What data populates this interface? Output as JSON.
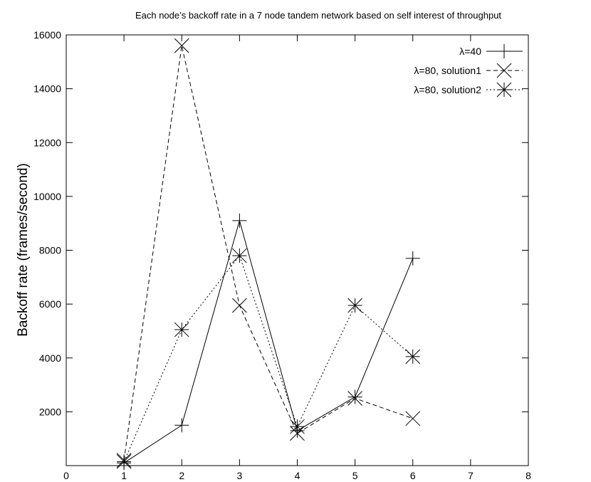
{
  "chart_data": {
    "type": "line",
    "title": "Each node’s backoff rate in a 7 node tandem network based on self interest of throughput",
    "xlabel": "",
    "ylabel": "Backoff rate (frames/second)",
    "xlim": [
      0,
      8
    ],
    "ylim": [
      0,
      16000
    ],
    "x_ticks": [
      "0",
      "1",
      "2",
      "3",
      "4",
      "5",
      "6",
      "7",
      "8"
    ],
    "y_ticks": [
      "2000",
      "4000",
      "6000",
      "8000",
      "10000",
      "12000",
      "14000",
      "16000"
    ],
    "grid": false,
    "legend_position": "top-right",
    "series": [
      {
        "name": "λ=40",
        "marker": "plus",
        "dash": "solid",
        "x": [
          1,
          2,
          3,
          4,
          5,
          6
        ],
        "values": [
          100,
          1500,
          9100,
          1300,
          2550,
          7700
        ]
      },
      {
        "name": "λ=80, solution1",
        "marker": "cross",
        "dash": "dashed",
        "x": [
          1,
          2,
          3,
          4,
          5,
          6
        ],
        "values": [
          200,
          15600,
          5950,
          1200,
          2500,
          1750
        ]
      },
      {
        "name": "λ=80, solution2",
        "marker": "star",
        "dash": "dotted",
        "x": [
          1,
          2,
          3,
          4,
          5,
          6
        ],
        "values": [
          150,
          5050,
          7800,
          1450,
          5950,
          4050
        ]
      }
    ]
  }
}
